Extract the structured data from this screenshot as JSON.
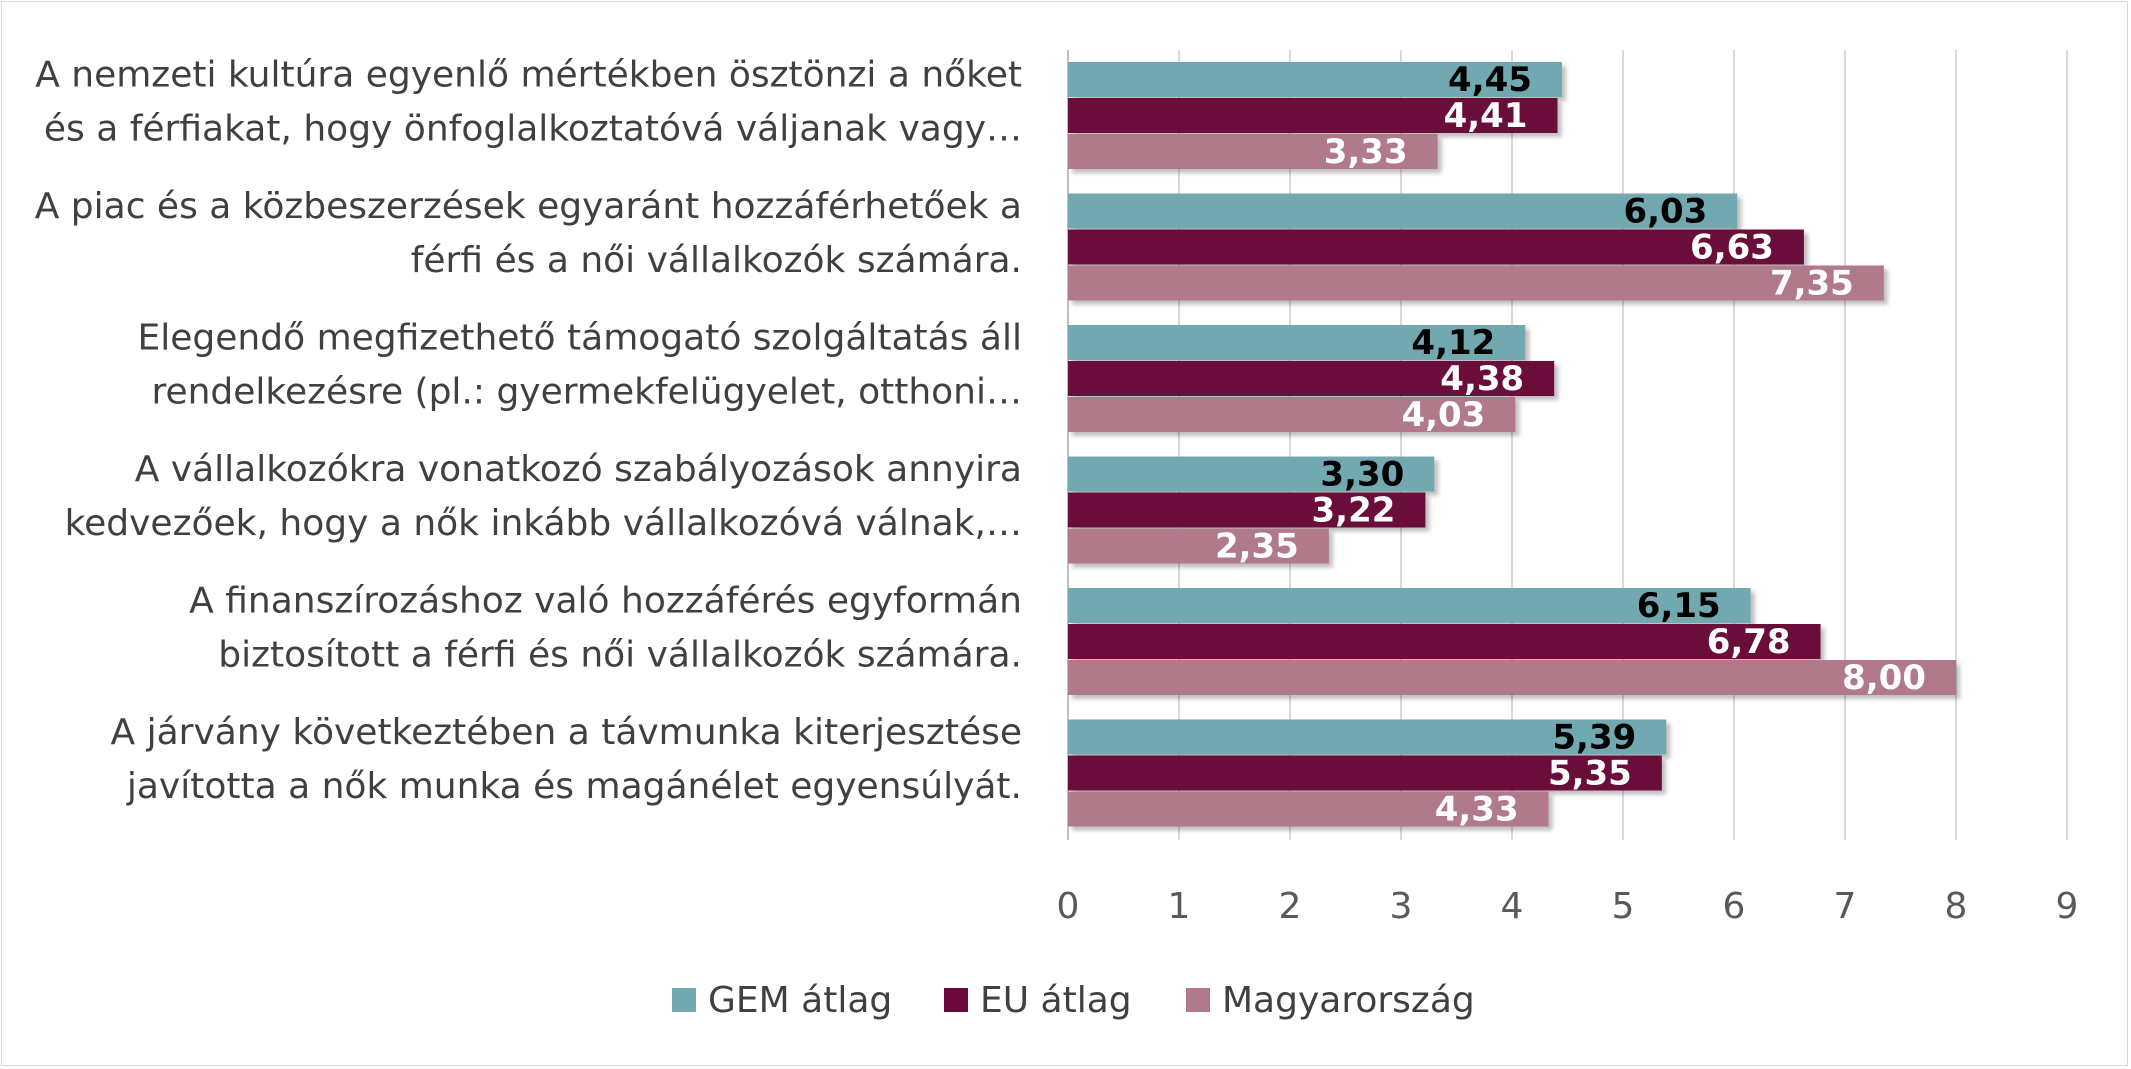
{
  "chart_data": {
    "type": "bar",
    "orientation": "horizontal",
    "categories": [
      [
        "A nemzeti kultúra egyenlő mértékben ösztönzi a nőket",
        "és a férfiakat, hogy önfoglalkoztatóvá váljanak vagy…"
      ],
      [
        "A piac és a közbeszerzések egyaránt hozzáférhetőek a",
        "férfi és a női vállalkozók számára."
      ],
      [
        "Elegendő megfizethető támogató szolgáltatás áll",
        "rendelkezésre (pl.: gyermekfelügyelet, otthoni…"
      ],
      [
        "A vállalkozókra vonatkozó szabályozások annyira",
        "kedvezőek, hogy a nők inkább vállalkozóvá válnak,…"
      ],
      [
        "A finanszírozáshoz való hozzáférés egyformán",
        "biztosított a férfi és női vállalkozók számára."
      ],
      [
        "A járvány következtében a távmunka kiterjesztése",
        "javította a nők munka és magánélet egyensúlyát."
      ]
    ],
    "series": [
      {
        "name": "GEM átlag",
        "color": "#72a8b0",
        "label_color": "#000000",
        "values": [
          4.45,
          6.03,
          4.12,
          3.3,
          6.15,
          5.39
        ],
        "labels": [
          "4,45",
          "6,03",
          "4,12",
          "3,30",
          "6,15",
          "5,39"
        ]
      },
      {
        "name": "EU átlag",
        "color": "#6b0a3a",
        "label_color": "#ffffff",
        "values": [
          4.41,
          6.63,
          4.38,
          3.22,
          6.78,
          5.35
        ],
        "labels": [
          "4,41",
          "6,63",
          "4,38",
          "3,22",
          "6,78",
          "5,35"
        ]
      },
      {
        "name": "Magyarország",
        "color": "#b07a8a",
        "label_color": "#ffffff",
        "values": [
          3.33,
          7.35,
          4.03,
          2.35,
          8.0,
          4.33
        ],
        "labels": [
          "3,33",
          "7,35",
          "4,03",
          "2,35",
          "8,00",
          "4,33"
        ]
      }
    ],
    "xlim": [
      0,
      9
    ],
    "ticks": [
      "0",
      "1",
      "2",
      "3",
      "4",
      "5",
      "6",
      "7",
      "8",
      "9"
    ],
    "grid": "vertical",
    "legend": "bottom",
    "title": "",
    "xlabel": "",
    "ylabel": ""
  }
}
